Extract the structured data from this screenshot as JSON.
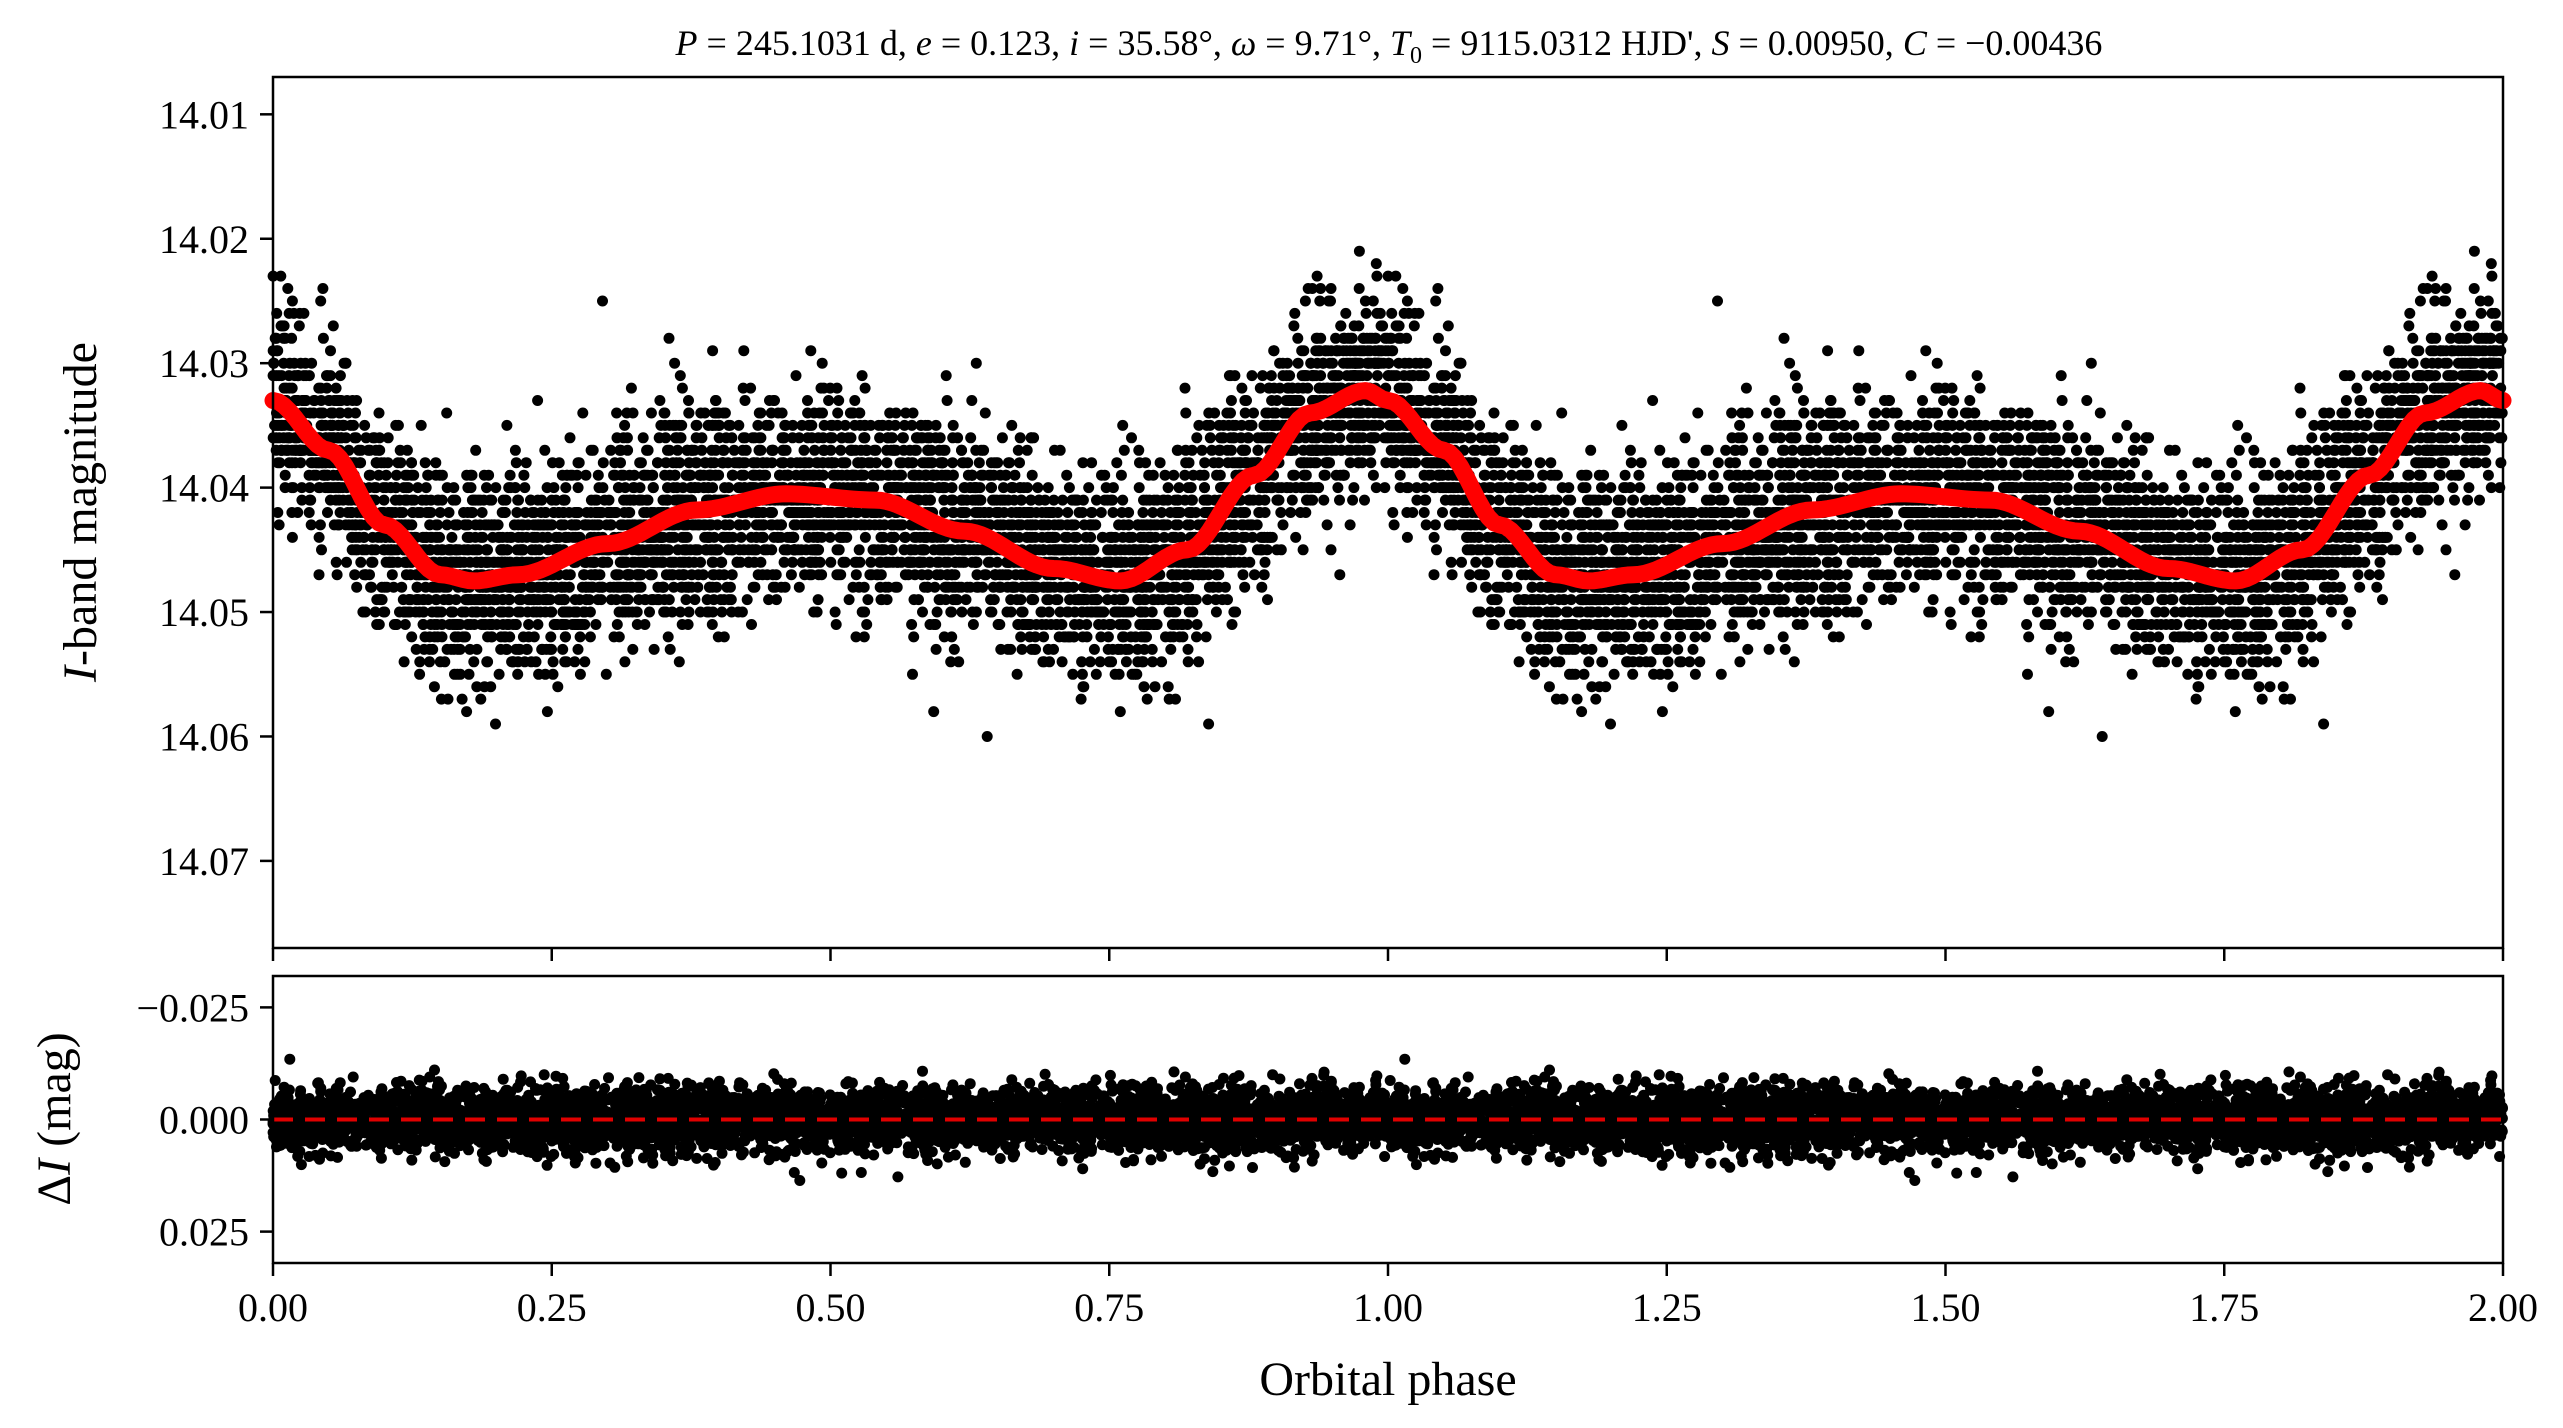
{
  "title": "P = 245.1031 d, e = 0.123, i = 35.58°, ω = 9.71°, T₀ = 9115.0312 HJD', S = 0.00950, C = −0.00436",
  "title_parts": {
    "P_sym": "P",
    "P_val": " = 245.1031 d, ",
    "e_sym": "e",
    "e_val": " = 0.123, ",
    "i_sym": "i",
    "i_val": " = 35.58°, ",
    "w_sym": "ω",
    "w_val": " = 9.71°, ",
    "T_sym": "T",
    "T_sub": "0",
    "T_val": " = 9115.0312 HJD', ",
    "S_sym": "S",
    "S_val": " = 0.00950, ",
    "C_sym": "C",
    "C_val": " = −0.00436"
  },
  "chart_data": [
    {
      "type": "scatter",
      "panel": "top",
      "xlabel": "",
      "ylabel_italic": "I",
      "ylabel_rest": "-band magnitude",
      "xlim": [
        0.0,
        2.0
      ],
      "ylim": [
        14.007,
        14.077
      ],
      "y_inverted": true,
      "yticks": [
        14.01,
        14.02,
        14.03,
        14.04,
        14.05,
        14.06,
        14.07
      ],
      "ytick_labels": [
        "14.01",
        "14.02",
        "14.03",
        "14.04",
        "14.05",
        "14.06",
        "14.07"
      ],
      "xticks": [
        0.0,
        0.25,
        0.5,
        0.75,
        1.0,
        1.25,
        1.5,
        1.75,
        2.0
      ],
      "point_color": "#000000",
      "model_color": "#ff0000",
      "model_curve": {
        "x": [
          0.0,
          0.05,
          0.1,
          0.15,
          0.18,
          0.22,
          0.3,
          0.38,
          0.46,
          0.54,
          0.62,
          0.7,
          0.76,
          0.82,
          0.88,
          0.93,
          0.98,
          1.0,
          1.05,
          1.1,
          1.15,
          1.18,
          1.22,
          1.3,
          1.38,
          1.46,
          1.54,
          1.62,
          1.7,
          1.76,
          1.82,
          1.88,
          1.93,
          1.98,
          2.0
        ],
        "y": [
          14.033,
          14.037,
          14.043,
          14.047,
          14.0475,
          14.047,
          14.0445,
          14.0418,
          14.0405,
          14.041,
          14.0435,
          14.0465,
          14.0475,
          14.045,
          14.039,
          14.034,
          14.0322,
          14.033,
          14.037,
          14.043,
          14.047,
          14.0475,
          14.047,
          14.0445,
          14.0418,
          14.0405,
          14.041,
          14.0435,
          14.0465,
          14.0475,
          14.045,
          14.039,
          14.034,
          14.0322,
          14.033
        ]
      },
      "scatter_spread_mag": 0.0075
    },
    {
      "type": "scatter",
      "panel": "bottom",
      "xlabel": "Orbital phase",
      "ylabel_delta": "Δ",
      "ylabel_italic": "I",
      "ylabel_rest": " (mag)",
      "xlim": [
        0.0,
        2.0
      ],
      "ylim": [
        -0.032,
        0.032
      ],
      "y_inverted": true,
      "yticks": [
        -0.025,
        0.0,
        0.025
      ],
      "ytick_labels": [
        "−0.025",
        "0.000",
        "0.025"
      ],
      "xticks": [
        0.0,
        0.25,
        0.5,
        0.75,
        1.0,
        1.25,
        1.5,
        1.75,
        2.0
      ],
      "xtick_labels": [
        "0.00",
        "0.25",
        "0.50",
        "0.75",
        "1.00",
        "1.25",
        "1.50",
        "1.75",
        "2.00"
      ],
      "zero_line_value": 0.0,
      "zero_line_color": "#e00000",
      "point_color": "#000000",
      "scatter_spread_mag": 0.0065
    }
  ]
}
